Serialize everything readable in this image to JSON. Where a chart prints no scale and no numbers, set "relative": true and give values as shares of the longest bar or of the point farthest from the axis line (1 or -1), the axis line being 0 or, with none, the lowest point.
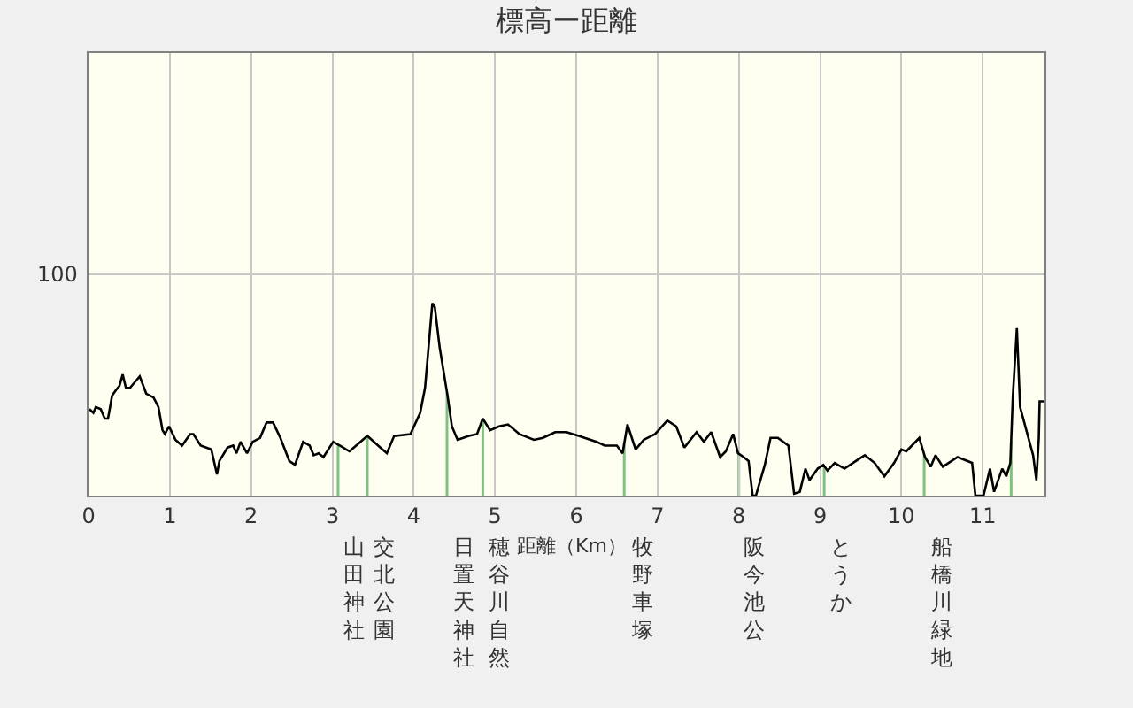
{
  "chart_data": {
    "type": "line",
    "title": "標高ー距離",
    "xlabel": "距離（Km）",
    "xlim": [
      0,
      11.76
    ],
    "xticks": [
      0,
      1,
      2,
      3,
      4,
      5,
      6,
      7,
      8,
      9,
      10,
      11
    ],
    "relative": true,
    "grid": "x",
    "marker": "none",
    "line_style": "solid",
    "series": [
      {
        "color": "#000000",
        "x": [
          0.01,
          0.06,
          0.09,
          0.15,
          0.2,
          0.24,
          0.29,
          0.34,
          0.38,
          0.42,
          0.46,
          0.51,
          0.57,
          0.63,
          0.71,
          0.8,
          0.86,
          0.91,
          0.94,
          0.99,
          1.07,
          1.15,
          1.25,
          1.29,
          1.38,
          1.51,
          1.58,
          1.61,
          1.71,
          1.78,
          1.82,
          1.87,
          1.95,
          2.02,
          2.11,
          2.19,
          2.27,
          2.36,
          2.47,
          2.54,
          2.64,
          2.72,
          2.77,
          2.83,
          2.89,
          3.01,
          3.09,
          3.21,
          3.43,
          3.59,
          3.67,
          3.76,
          3.96,
          4.08,
          4.14,
          4.23,
          4.26,
          4.32,
          4.42,
          4.47,
          4.54,
          4.61,
          4.68,
          4.78,
          4.85,
          4.94,
          5.05,
          5.16,
          5.3,
          5.48,
          5.59,
          5.74,
          5.88,
          6.03,
          6.25,
          6.35,
          6.5,
          6.57,
          6.63,
          6.73,
          6.83,
          6.97,
          7.12,
          7.23,
          7.33,
          7.48,
          7.57,
          7.66,
          7.77,
          7.84,
          7.93,
          7.99,
          8.06,
          8.12,
          8.17,
          8.21,
          8.32,
          8.39,
          8.48,
          8.61,
          8.68,
          8.75,
          8.82,
          8.87,
          8.97,
          9.04,
          9.09,
          9.18,
          9.3,
          9.44,
          9.55,
          9.67,
          9.79,
          9.91,
          10.0,
          10.06,
          10.22,
          10.29,
          10.36,
          10.42,
          10.51,
          10.69,
          10.87,
          10.91,
          11.01,
          11.09,
          11.14,
          11.24,
          11.29,
          11.34,
          11.37,
          11.42,
          11.46,
          11.62,
          11.66,
          11.69,
          11.7,
          11.76
        ],
        "values": [
          0.45,
          0.43,
          0.46,
          0.45,
          0.4,
          0.4,
          0.52,
          0.55,
          0.57,
          0.63,
          0.56,
          0.56,
          0.59,
          0.62,
          0.53,
          0.51,
          0.46,
          0.34,
          0.32,
          0.36,
          0.29,
          0.26,
          0.32,
          0.32,
          0.26,
          0.24,
          0.11,
          0.18,
          0.25,
          0.26,
          0.22,
          0.28,
          0.22,
          0.28,
          0.3,
          0.38,
          0.38,
          0.3,
          0.18,
          0.16,
          0.28,
          0.26,
          0.21,
          0.22,
          0.2,
          0.28,
          0.26,
          0.23,
          0.31,
          0.25,
          0.22,
          0.31,
          0.32,
          0.43,
          0.56,
          1,
          0.98,
          0.77,
          0.51,
          0.36,
          0.29,
          0.3,
          0.31,
          0.32,
          0.4,
          0.34,
          0.36,
          0.37,
          0.32,
          0.29,
          0.3,
          0.33,
          0.33,
          0.31,
          0.28,
          0.26,
          0.26,
          0.22,
          0.37,
          0.24,
          0.29,
          0.32,
          0.39,
          0.36,
          0.25,
          0.33,
          0.28,
          0.33,
          0.2,
          0.23,
          0.32,
          0.22,
          0.2,
          0.18,
          0,
          0,
          0.16,
          0.3,
          0.3,
          0.26,
          0.01,
          0.02,
          0.14,
          0.08,
          0.14,
          0.16,
          0.13,
          0.17,
          0.14,
          0.18,
          0.21,
          0.17,
          0.1,
          0.17,
          0.24,
          0.23,
          0.3,
          0.2,
          0.15,
          0.21,
          0.15,
          0.2,
          0.17,
          0,
          0,
          0.14,
          0.02,
          0.14,
          0.1,
          0.17,
          0.51,
          0.87,
          0.46,
          0.21,
          0.08,
          0.3,
          0.49,
          0.49
        ]
      }
    ],
    "annotations": [
      "100"
    ],
    "ref_lines": [
      {
        "axis": "x",
        "value": 3.07,
        "label": "山田神社",
        "color": "#80c080"
      },
      {
        "axis": "x",
        "value": 3.43,
        "label": "交北公園",
        "color": "#80c080"
      },
      {
        "axis": "x",
        "value": 4.41,
        "label": "日置天神社",
        "color": "#80c080"
      },
      {
        "axis": "x",
        "value": 4.85,
        "label": "穂谷川自然",
        "color": "#80c080"
      },
      {
        "axis": "x",
        "value": 6.59,
        "label": "牧野車塚",
        "color": "#80c080"
      },
      {
        "axis": "x",
        "value": 8.0,
        "label": "阪今池公",
        "color": "#80c080"
      },
      {
        "axis": "x",
        "value": 9.05,
        "label": "とうか",
        "color": "#80c080"
      },
      {
        "axis": "x",
        "value": 10.28,
        "label": "船橋川緑地",
        "color": "#80c080"
      },
      {
        "axis": "x",
        "value": 11.35,
        "label": null,
        "color": "#80c080"
      }
    ]
  }
}
